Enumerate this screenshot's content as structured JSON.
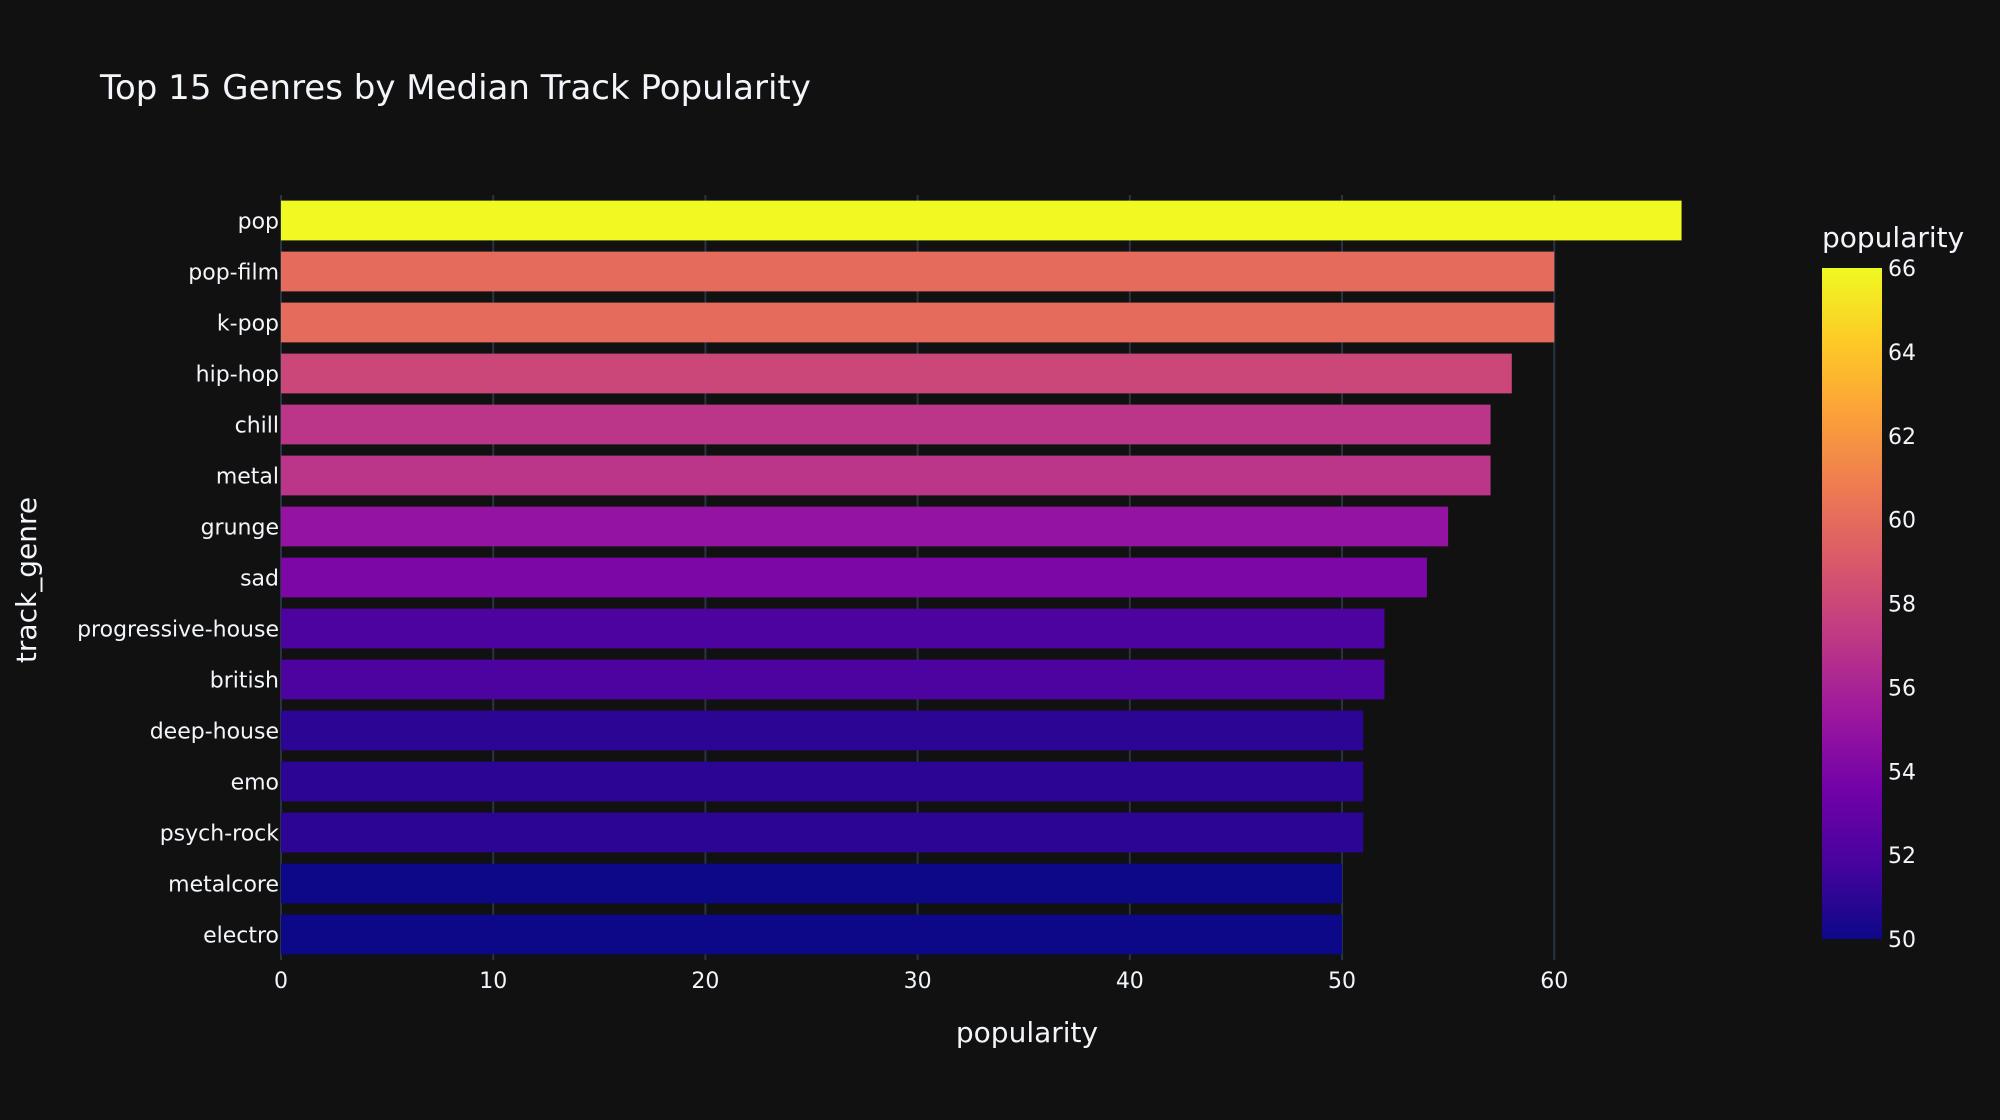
{
  "chart_data": {
    "type": "bar",
    "orientation": "horizontal",
    "title": "Top 15 Genres by Median Track Popularity",
    "xlabel": "popularity",
    "ylabel": "track_genre",
    "xlim": [
      0,
      68
    ],
    "x_ticks": [
      0,
      10,
      20,
      30,
      40,
      50,
      60
    ],
    "grid": true,
    "categories": [
      "pop",
      "pop-film",
      "k-pop",
      "hip-hop",
      "chill",
      "metal",
      "grunge",
      "sad",
      "progressive-house",
      "british",
      "deep-house",
      "emo",
      "psych-rock",
      "metalcore",
      "electro"
    ],
    "values": [
      66,
      60,
      60,
      58,
      57,
      57,
      55,
      54,
      52,
      52,
      51,
      51,
      51,
      50,
      50
    ],
    "colorbar": {
      "title": "popularity",
      "range": [
        50,
        66
      ],
      "ticks": [
        50,
        52,
        54,
        56,
        58,
        60,
        62,
        64,
        66
      ],
      "colorscale": [
        "#0d0887",
        "#46039f",
        "#7201a8",
        "#9c179e",
        "#bd3786",
        "#d8576b",
        "#ed7953",
        "#fb9f3a",
        "#fdca26",
        "#f0f921"
      ]
    },
    "colors": {
      "background": "#111111",
      "grid": "#283442",
      "text": "#f2f5fa"
    }
  }
}
